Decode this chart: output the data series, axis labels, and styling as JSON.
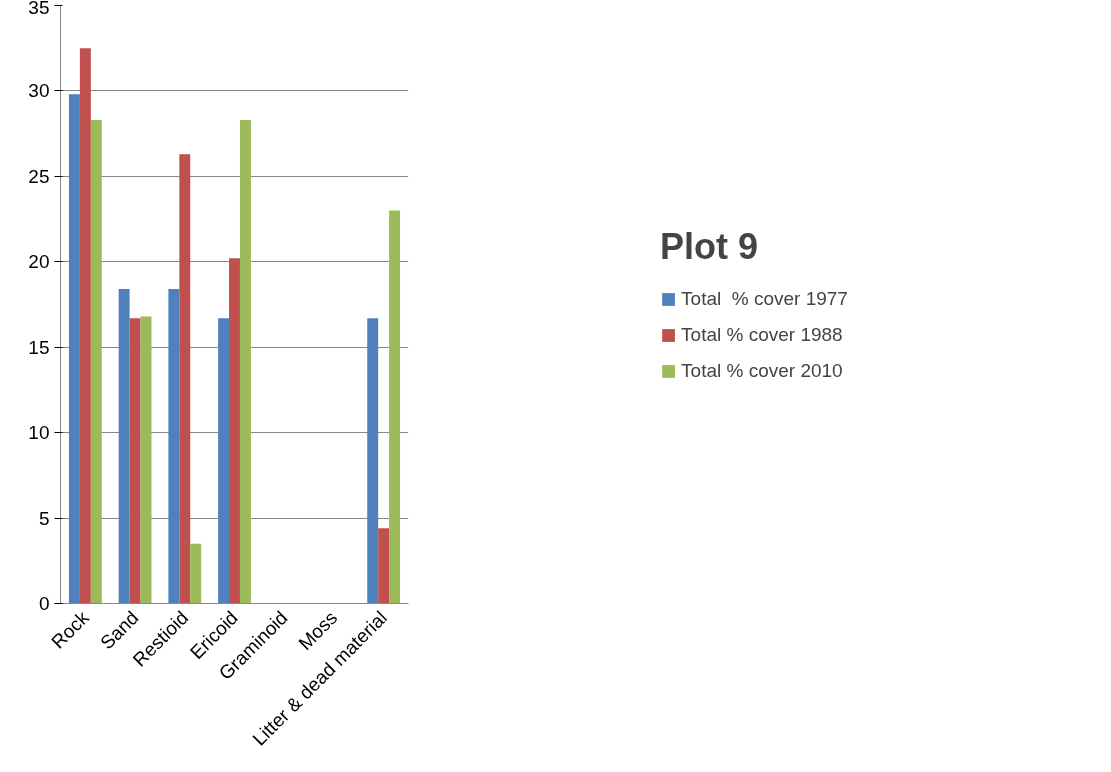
{
  "chart_data": {
    "type": "bar",
    "title": "Plot 9",
    "categories": [
      "Rock",
      "Sand",
      "Restioid",
      "Ericoid",
      "Graminoid",
      "Moss",
      "Litter & dead material"
    ],
    "series": [
      {
        "name": "Total  % cover 1977",
        "color": "#4f81bd",
        "values": [
          29.8,
          18.4,
          18.4,
          16.7,
          0,
          0,
          16.7
        ]
      },
      {
        "name": "Total % cover 1988",
        "color": "#c0504d",
        "values": [
          32.5,
          16.7,
          26.3,
          20.2,
          0,
          0,
          4.4
        ]
      },
      {
        "name": "Total % cover 2010",
        "color": "#9bbb59",
        "values": [
          28.3,
          16.8,
          3.5,
          28.3,
          0,
          0,
          23.0
        ]
      }
    ],
    "ylim": [
      0,
      35
    ],
    "yticks": [
      0,
      5,
      10,
      15,
      20,
      25,
      30,
      35
    ],
    "grid": "y",
    "legend": "right"
  }
}
